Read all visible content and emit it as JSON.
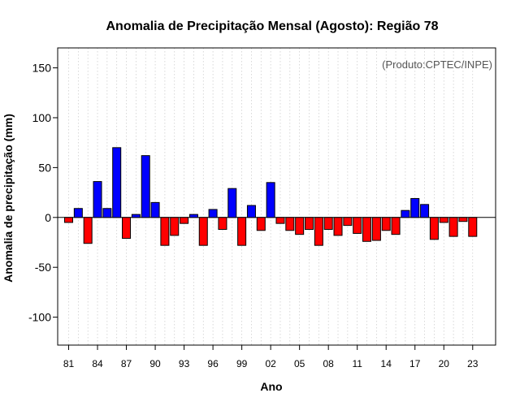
{
  "chart_data": {
    "type": "bar",
    "title": "Anomalia de Precipitação Mensal (Agosto): Região 78",
    "xlabel": "Ano",
    "ylabel": "Anomalia de precipitação (mm)",
    "credit": "(Produto:CPTEC/INPE)",
    "ylim": [
      -128,
      170
    ],
    "yticks": [
      -100,
      -50,
      0,
      50,
      100,
      150
    ],
    "grid": "vertical-dotted",
    "positive_color": "#0000ff",
    "negative_color": "#ff0000",
    "years": [
      1981,
      1982,
      1983,
      1984,
      1985,
      1986,
      1987,
      1988,
      1989,
      1990,
      1991,
      1992,
      1993,
      1994,
      1995,
      1996,
      1997,
      1998,
      1999,
      2000,
      2001,
      2002,
      2003,
      2004,
      2005,
      2006,
      2007,
      2008,
      2009,
      2010,
      2011,
      2012,
      2013,
      2014,
      2015,
      2016,
      2017,
      2018,
      2019,
      2020,
      2021,
      2022,
      2023
    ],
    "values": [
      -5,
      9,
      -26,
      36,
      9,
      70,
      -21,
      3,
      62,
      15,
      -28,
      -18,
      -6,
      3,
      -28,
      8,
      -12,
      29,
      -28,
      12,
      -13,
      35,
      -6,
      -13,
      -17,
      -12,
      -28,
      -12,
      -18,
      -8,
      -16,
      -24,
      -23,
      -13,
      -17,
      7,
      19,
      13,
      -22,
      -5,
      -19,
      -4,
      -19
    ],
    "xtick_labels": [
      "81",
      "84",
      "87",
      "90",
      "93",
      "96",
      "99",
      "02",
      "05",
      "08",
      "11",
      "14",
      "17",
      "20",
      "23"
    ]
  }
}
